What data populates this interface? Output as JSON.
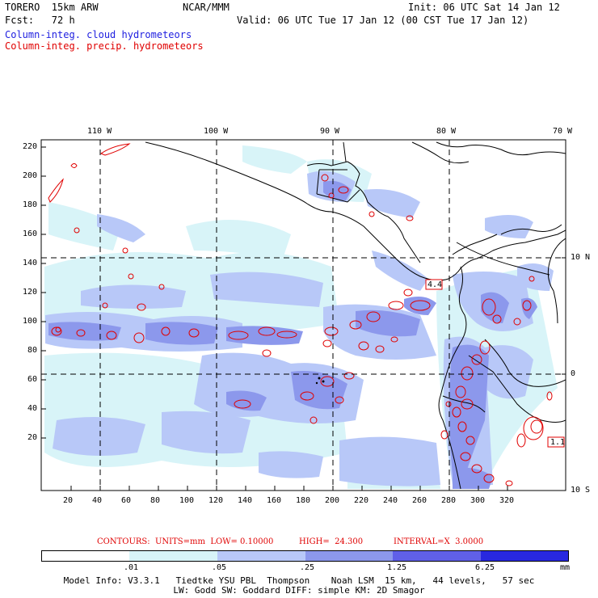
{
  "header": {
    "model": "TORERO  15km ARW",
    "org": "NCAR/MMM",
    "init": "Init: 06 UTC Sat 14 Jan 12",
    "fcst": "Fcst:   72 h",
    "valid": "Valid: 06 UTC Tue 17 Jan 12 (00 CST Tue 17 Jan 12)",
    "field1": "Column-integ. cloud hydrometeors",
    "field2": "Column-integ. precip. hydrometeors"
  },
  "map": {
    "lon_labels": [
      "110 W",
      "100 W",
      "90 W",
      "80 W",
      "70 W"
    ],
    "lat_labels": [
      "10 N",
      "0",
      "10 S"
    ],
    "y_ticks": [
      "220",
      "200",
      "180",
      "160",
      "140",
      "120",
      "100",
      "80",
      "60",
      "40",
      "20"
    ],
    "x_ticks": [
      "20",
      "40",
      "60",
      "80",
      "100",
      "120",
      "140",
      "160",
      "180",
      "200",
      "220",
      "240",
      "260",
      "280",
      "300",
      "320"
    ],
    "boxed_labels": [
      "4.4",
      "1.1"
    ],
    "colors": {
      "cloud_light": "#d8f4f8",
      "cloud_mid": "#b8c8f8",
      "cloud_dark": "#8c98ec",
      "precip_contour": "#e00000",
      "coast": "#000000"
    }
  },
  "contours": {
    "label": "CONTOURS:  UNITS=mm  LOW= 0.10000",
    "high": "HIGH=  24.300",
    "interval": "INTERVAL=X  3.0000"
  },
  "legend": {
    "values": [
      ".01",
      ".05",
      ".25",
      "1.25",
      "6.25"
    ],
    "unit": "mm",
    "colors": [
      "#ffffff",
      "#d8f4f8",
      "#b8c8f8",
      "#8c98ec",
      "#6060e8",
      "#2828e0"
    ]
  },
  "footer": {
    "line1": "Model Info: V3.3.1   Tiedtke YSU PBL  Thompson    Noah LSM  15 km,   44 levels,   57 sec",
    "line2": "LW: Godd SW: Goddard DIFF: simple KM: 2D Smagor"
  }
}
